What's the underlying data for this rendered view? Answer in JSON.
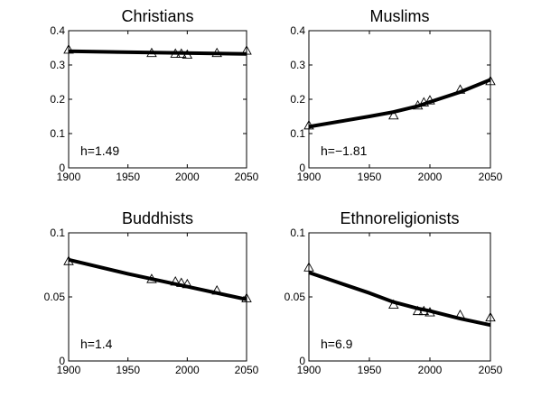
{
  "chart_data": [
    {
      "type": "line",
      "title": "Christians",
      "xlabel": "",
      "ylabel": "",
      "xlim": [
        1900,
        2050
      ],
      "ylim": [
        0,
        0.4
      ],
      "xticks": [
        1900,
        1950,
        2000,
        2050
      ],
      "yticks": [
        0,
        0.1,
        0.2,
        0.3,
        0.4
      ],
      "ytick_labels": [
        "0",
        "0.1",
        "0.2",
        "0.3",
        "0.4"
      ],
      "annotation": "h=1.49",
      "points": {
        "x": [
          1900,
          1970,
          1990,
          1995,
          2000,
          2025,
          2050
        ],
        "y": [
          0.345,
          0.335,
          0.333,
          0.333,
          0.33,
          0.335,
          0.342
        ]
      },
      "fit": {
        "x": [
          1900,
          2050
        ],
        "y": [
          0.34,
          0.332
        ]
      },
      "grid": false
    },
    {
      "type": "line",
      "title": "Muslims",
      "xlabel": "",
      "ylabel": "",
      "xlim": [
        1900,
        2050
      ],
      "ylim": [
        0,
        0.4
      ],
      "xticks": [
        1900,
        1950,
        2000,
        2050
      ],
      "yticks": [
        0,
        0.1,
        0.2,
        0.3,
        0.4
      ],
      "ytick_labels": [
        "0",
        "0.1",
        "0.2",
        "0.3",
        "0.4"
      ],
      "annotation": "h=−1.81",
      "points": {
        "x": [
          1900,
          1970,
          1990,
          1995,
          2000,
          2025,
          2050
        ],
        "y": [
          0.124,
          0.153,
          0.182,
          0.191,
          0.197,
          0.228,
          0.253
        ]
      },
      "fit": {
        "x": [
          1900,
          1925,
          1950,
          1970,
          1990,
          2000,
          2025,
          2050
        ],
        "y": [
          0.12,
          0.135,
          0.15,
          0.163,
          0.18,
          0.192,
          0.221,
          0.257
        ]
      },
      "grid": false
    },
    {
      "type": "line",
      "title": "Buddhists",
      "xlabel": "",
      "ylabel": "",
      "xlim": [
        1900,
        2050
      ],
      "ylim": [
        0,
        0.1
      ],
      "xticks": [
        1900,
        1950,
        2000,
        2050
      ],
      "yticks": [
        0,
        0.05,
        0.1
      ],
      "ytick_labels": [
        "0",
        "0.05",
        "0.1"
      ],
      "annotation": "h=1.4",
      "points": {
        "x": [
          1900,
          1970,
          1990,
          1995,
          2000,
          2025,
          2050
        ],
        "y": [
          0.078,
          0.064,
          0.062,
          0.061,
          0.06,
          0.055,
          0.049
        ]
      },
      "fit": {
        "x": [
          1900,
          1950,
          2000,
          2050
        ],
        "y": [
          0.079,
          0.068,
          0.058,
          0.048
        ]
      },
      "grid": false
    },
    {
      "type": "line",
      "title": "Ethnoreligionists",
      "xlabel": "",
      "ylabel": "",
      "xlim": [
        1900,
        2050
      ],
      "ylim": [
        0,
        0.1
      ],
      "xticks": [
        1900,
        1950,
        2000,
        2050
      ],
      "yticks": [
        0,
        0.05,
        0.1
      ],
      "ytick_labels": [
        "0",
        "0.05",
        "0.1"
      ],
      "annotation": "h=6.9",
      "points": {
        "x": [
          1900,
          1970,
          1990,
          1995,
          2000,
          2025,
          2050
        ],
        "y": [
          0.073,
          0.044,
          0.039,
          0.039,
          0.038,
          0.036,
          0.034
        ]
      },
      "fit": {
        "x": [
          1900,
          1925,
          1950,
          1970,
          1990,
          2000,
          2025,
          2050
        ],
        "y": [
          0.069,
          0.061,
          0.053,
          0.046,
          0.041,
          0.039,
          0.033,
          0.028
        ]
      },
      "grid": false
    }
  ]
}
